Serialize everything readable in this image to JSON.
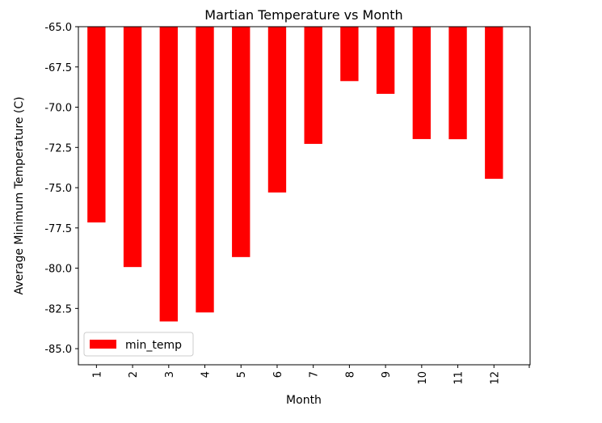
{
  "chart_data": {
    "type": "bar",
    "title": "Martian Temperature vs Month",
    "xlabel": "Month",
    "ylabel": "Average Minimum Temperature (C)",
    "categories": [
      "1",
      "2",
      "3",
      "4",
      "5",
      "6",
      "7",
      "8",
      "9",
      "10",
      "11",
      "12"
    ],
    "series": [
      {
        "name": "min_temp",
        "values": [
          -77.16,
          -79.93,
          -83.31,
          -82.75,
          -79.31,
          -75.3,
          -72.28,
          -68.38,
          -69.17,
          -71.98,
          -71.99,
          -74.45
        ],
        "color": "#ff0000"
      }
    ],
    "ylim": [
      -86.0,
      -65.0
    ],
    "yticks": [
      "-65.0",
      "-67.5",
      "-70.0",
      "-72.5",
      "-75.0",
      "-77.5",
      "-80.0",
      "-82.5",
      "-85.0"
    ],
    "ytick_values": [
      -65.0,
      -67.5,
      -70.0,
      -72.5,
      -75.0,
      -77.5,
      -80.0,
      -82.5,
      -85.0
    ],
    "bar_baseline": -65.0,
    "legend_position": "lower-left",
    "grid": false
  }
}
